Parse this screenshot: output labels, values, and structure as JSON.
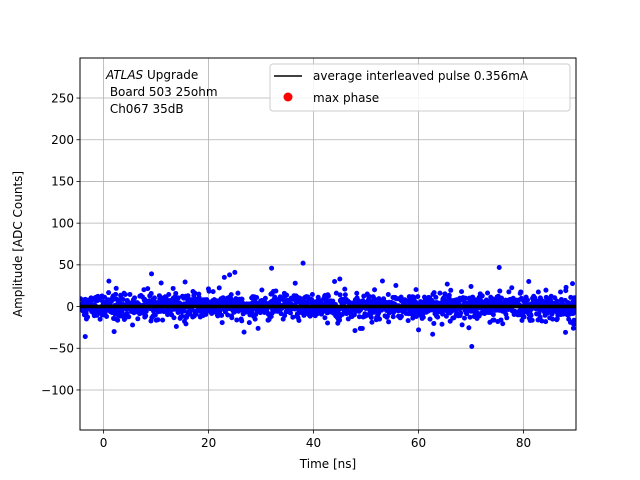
{
  "chart_data": {
    "type": "scatter",
    "xlabel": "Time [ns]",
    "ylabel": "Amplitude [ADC Counts]",
    "xlim": [
      -4.5,
      90
    ],
    "ylim": [
      -148,
      298
    ],
    "xticks": [
      0,
      20,
      40,
      60,
      80
    ],
    "yticks": [
      -100,
      -50,
      0,
      50,
      100,
      150,
      200,
      250
    ],
    "grid": true,
    "annotation": {
      "italic": "ATLAS",
      "rest": " Upgrade",
      "line2": " Board 503 25ohm",
      "line3": " Ch067 35dB"
    },
    "legend": {
      "placement": "top-right",
      "entries": [
        {
          "label": "average interleaved pulse 0.356mA",
          "kind": "line",
          "color": "#000000"
        },
        {
          "label": "max phase",
          "kind": "marker",
          "color": "#ff0000"
        }
      ]
    },
    "series": [
      {
        "role": "samples",
        "color": "#0000ff",
        "x_range": [
          -4.5,
          90
        ],
        "count": 1700,
        "noise_sigma": 9,
        "outliers": [
          {
            "x": -3.5,
            "y": -36
          },
          {
            "x": 24,
            "y": 38
          },
          {
            "x": 25,
            "y": 41
          },
          {
            "x": 23,
            "y": 35
          },
          {
            "x": 32,
            "y": 46
          },
          {
            "x": 36.5,
            "y": 28
          },
          {
            "x": 38,
            "y": 52
          },
          {
            "x": 44,
            "y": 30
          },
          {
            "x": 45,
            "y": 33
          },
          {
            "x": 89.5,
            "y": -26
          },
          {
            "x": 88,
            "y": -31
          },
          {
            "x": 2,
            "y": -30
          },
          {
            "x": 60,
            "y": -28
          },
          {
            "x": 70,
            "y": 24
          },
          {
            "x": 81,
            "y": 30
          }
        ]
      },
      {
        "role": "average",
        "color": "#000000",
        "x": [
          -4.5,
          90
        ],
        "y": [
          0,
          0
        ]
      }
    ]
  }
}
